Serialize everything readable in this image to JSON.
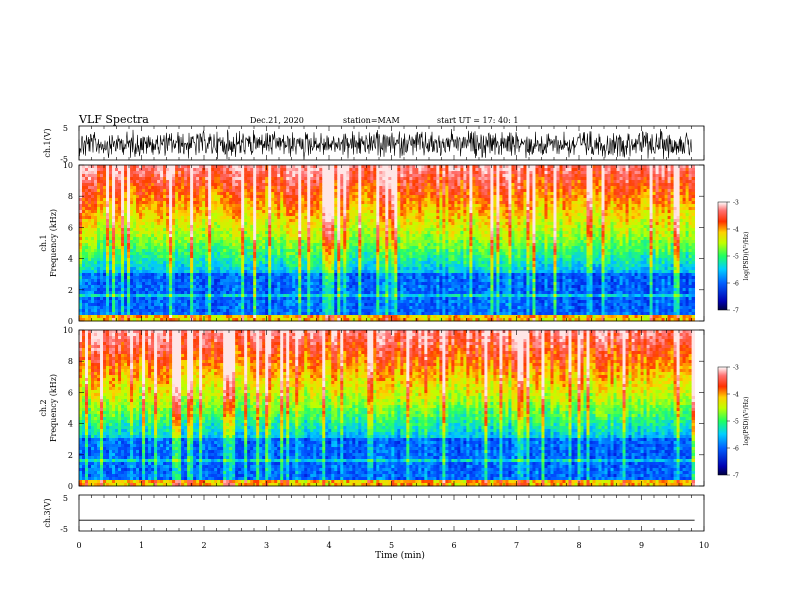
{
  "header": {
    "title": "VLF Spectra",
    "date": "Dec.21, 2020",
    "station": "station=MAM",
    "start": "start UT =  17: 40: 1"
  },
  "chart_data": [
    {
      "type": "line",
      "panel": "ch1-waveform",
      "ylabel": "ch.1(V)",
      "ylim": [
        -5,
        5
      ],
      "y_ticks": [
        "5",
        "-5"
      ],
      "xlim": [
        0,
        10
      ],
      "description_free": true
    },
    {
      "type": "heatmap",
      "panel": "ch1-spectrogram",
      "ylabel_line1": "ch.1",
      "ylabel_line2": "Frequency (kHz)",
      "ylim": [
        0,
        10
      ],
      "y_ticks": [
        "0",
        "2",
        "4",
        "6",
        "8",
        "10"
      ],
      "xlim": [
        0,
        9.85
      ],
      "colorbar": {
        "label": "log(PSD)(V²/Hz)",
        "range": [
          -7,
          -3
        ],
        "ticks": [
          "-3",
          "-4",
          "-5",
          "-6",
          "-7"
        ]
      }
    },
    {
      "type": "heatmap",
      "panel": "ch2-spectrogram",
      "ylabel_line1": "ch.2",
      "ylabel_line2": "Frequency (kHz)",
      "ylim": [
        0,
        10
      ],
      "y_ticks": [
        "0",
        "2",
        "4",
        "6",
        "8",
        "10"
      ],
      "xlim": [
        0,
        9.85
      ],
      "colorbar": {
        "label": "log(PSD)(V²/Hz)",
        "range": [
          -7,
          -3
        ],
        "ticks": [
          "-3",
          "-4",
          "-5",
          "-6",
          "-7"
        ]
      }
    },
    {
      "type": "line",
      "panel": "ch3-waveform",
      "ylabel": "ch.3(V)",
      "ylim": [
        -5,
        5
      ],
      "y_ticks": [
        "5",
        "-5"
      ],
      "series_constant_value": -2,
      "xlim": [
        0,
        10
      ]
    }
  ],
  "x_axis": {
    "label": "Time (min)",
    "ticks": [
      "0",
      "1",
      "2",
      "3",
      "4",
      "5",
      "6",
      "7",
      "8",
      "9",
      "10"
    ]
  }
}
